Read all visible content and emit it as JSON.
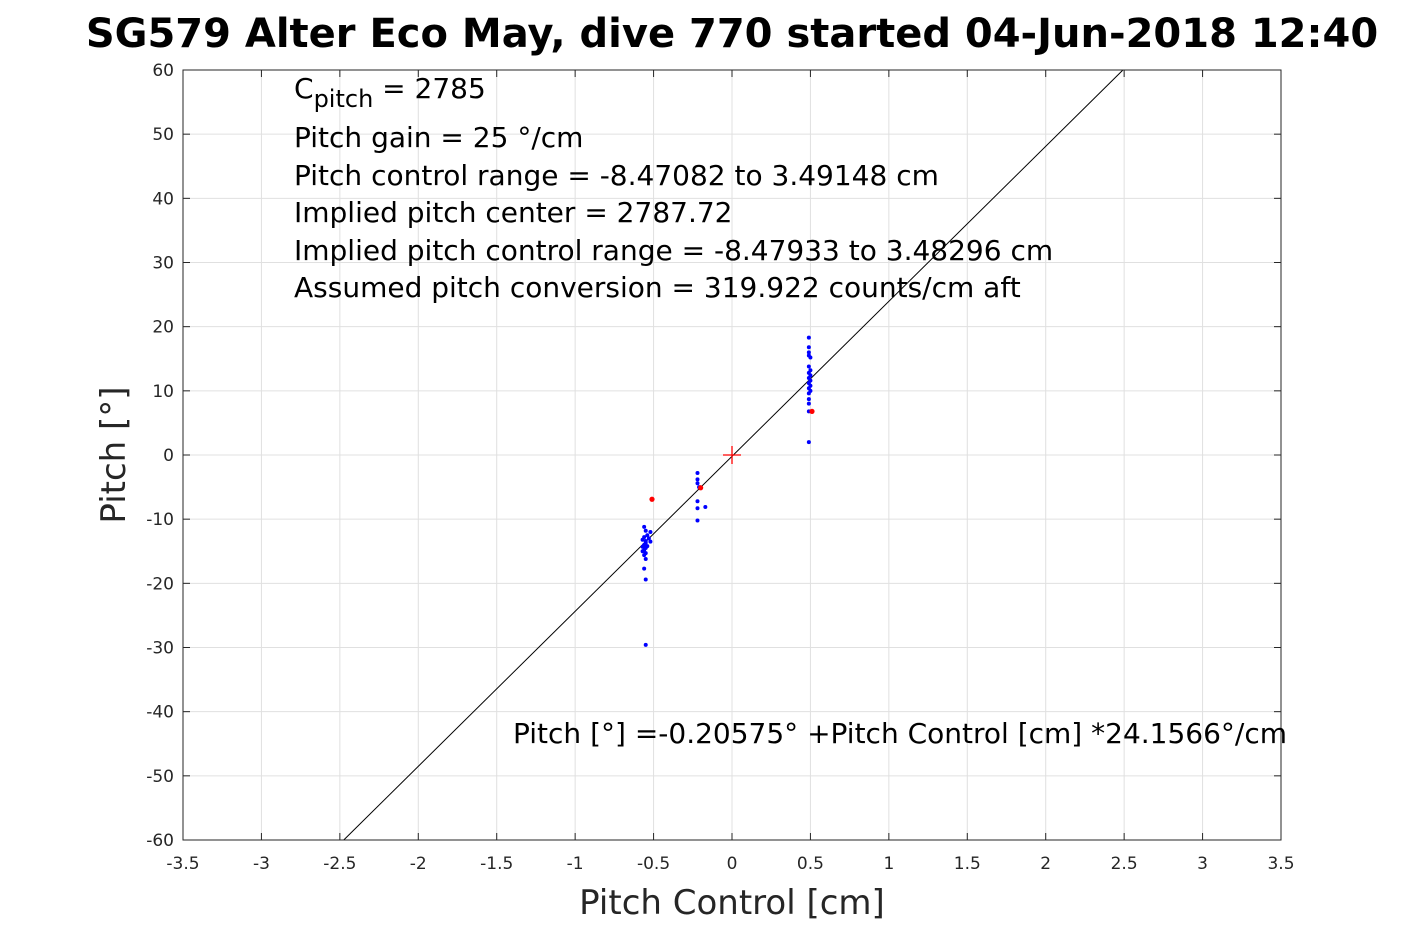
{
  "chart_data": {
    "type": "scatter",
    "title": "SG579 Alter Eco May, dive 770 started 04-Jun-2018 12:40",
    "xlabel": "Pitch Control [cm]",
    "ylabel": "Pitch [°]",
    "xlim": [
      -3.5,
      3.5
    ],
    "ylim": [
      -60,
      60
    ],
    "xticks": [
      -3.5,
      -3,
      -2.5,
      -2,
      -1.5,
      -1,
      -0.5,
      0,
      0.5,
      1,
      1.5,
      2,
      2.5,
      3,
      3.5
    ],
    "yticks": [
      -60,
      -50,
      -40,
      -30,
      -20,
      -10,
      0,
      10,
      20,
      30,
      40,
      50,
      60
    ],
    "grid": true,
    "annotations": {
      "c_pitch_symbol": "C",
      "c_pitch_sub": "pitch",
      "c_pitch_value": " = 2785",
      "lines": [
        "Pitch gain = 25 °/cm",
        "Pitch control range = -8.47082 to 3.49148 cm",
        "Implied pitch center = 2787.72",
        "Implied pitch control range = -8.47933 to 3.48296 cm",
        "Assumed pitch conversion = 319.922 counts/cm aft"
      ],
      "fit_equation": "Pitch [°] =-0.20575° +Pitch Control [cm] *24.1566°/cm"
    },
    "fit_line": {
      "intercept": -0.20575,
      "slope": 24.1566,
      "color": "#000000"
    },
    "center_marker": {
      "x": 0,
      "y": 0,
      "color": "#ff0000"
    },
    "series": [
      {
        "color": "#0000ff",
        "points": [
          [
            -0.56,
            -11.2
          ],
          [
            -0.55,
            -11.8
          ],
          [
            -0.54,
            -12.5
          ],
          [
            -0.56,
            -12.8
          ],
          [
            -0.57,
            -13.2
          ],
          [
            -0.55,
            -13.4
          ],
          [
            -0.53,
            -13.0
          ],
          [
            -0.55,
            -13.7
          ],
          [
            -0.56,
            -14.0
          ],
          [
            -0.57,
            -14.3
          ],
          [
            -0.55,
            -14.5
          ],
          [
            -0.56,
            -14.8
          ],
          [
            -0.54,
            -14.2
          ],
          [
            -0.57,
            -15.0
          ],
          [
            -0.55,
            -15.3
          ],
          [
            -0.56,
            -15.6
          ],
          [
            -0.55,
            -16.2
          ],
          [
            -0.56,
            -17.7
          ],
          [
            -0.55,
            -19.4
          ],
          [
            -0.55,
            -29.6
          ],
          [
            -0.52,
            -12.0
          ],
          [
            -0.52,
            -13.5
          ],
          [
            -0.22,
            -2.8
          ],
          [
            -0.22,
            -3.8
          ],
          [
            -0.22,
            -4.4
          ],
          [
            -0.21,
            -5.0
          ],
          [
            -0.22,
            -7.2
          ],
          [
            -0.22,
            -8.3
          ],
          [
            -0.17,
            -8.1
          ],
          [
            -0.22,
            -10.2
          ],
          [
            0.49,
            18.3
          ],
          [
            0.49,
            16.8
          ],
          [
            0.49,
            16.0
          ],
          [
            0.49,
            15.5
          ],
          [
            0.5,
            15.2
          ],
          [
            0.49,
            13.8
          ],
          [
            0.5,
            13.2
          ],
          [
            0.49,
            12.8
          ],
          [
            0.5,
            12.4
          ],
          [
            0.49,
            12.0
          ],
          [
            0.5,
            11.6
          ],
          [
            0.49,
            11.2
          ],
          [
            0.5,
            10.8
          ],
          [
            0.49,
            10.4
          ],
          [
            0.5,
            10.0
          ],
          [
            0.49,
            9.6
          ],
          [
            0.49,
            8.7
          ],
          [
            0.49,
            8.0
          ],
          [
            0.49,
            6.8
          ],
          [
            0.49,
            2.0
          ]
        ]
      },
      {
        "color": "#ff0000",
        "points": [
          [
            -0.51,
            -6.9
          ],
          [
            -0.2,
            -5.1
          ],
          [
            0.51,
            6.8
          ]
        ]
      }
    ]
  }
}
